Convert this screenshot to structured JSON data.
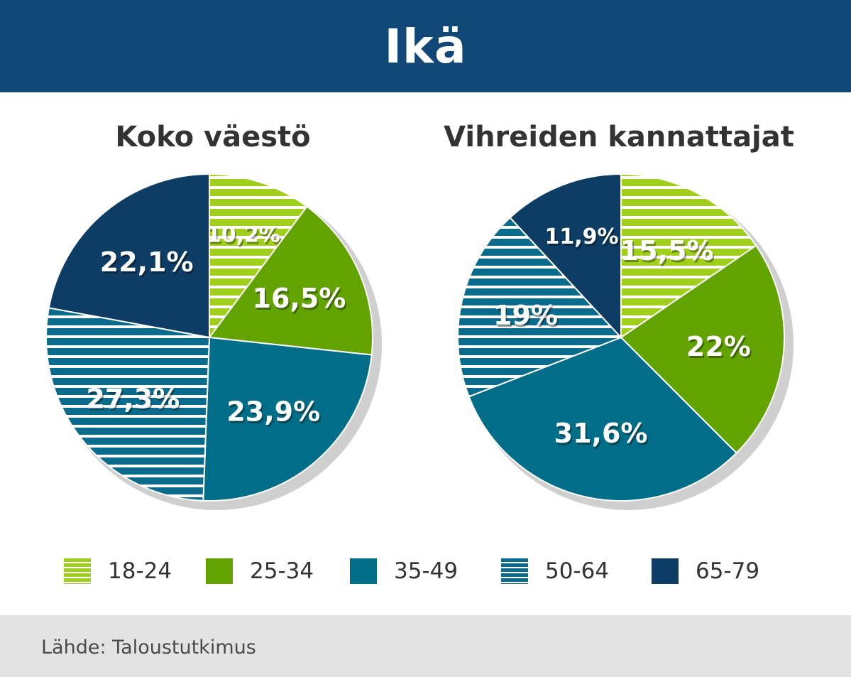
{
  "header": {
    "title": "Ikä"
  },
  "colors": {
    "header_bg": "#124878",
    "age_18_24": "#9fce1d",
    "age_25_34": "#62a300",
    "age_35_49": "#006e88",
    "age_50_64": "#0a6b8c",
    "age_65_79": "#0d3c64",
    "label_text": "#ffffff"
  },
  "legend": [
    {
      "key": "18-24",
      "label": "18-24",
      "pattern": "striped",
      "color": "#9fce1d"
    },
    {
      "key": "25-34",
      "label": "25-34",
      "pattern": "solid",
      "color": "#62a300"
    },
    {
      "key": "35-49",
      "label": "35-49",
      "pattern": "solid",
      "color": "#006e88"
    },
    {
      "key": "50-64",
      "label": "50-64",
      "pattern": "striped",
      "color": "#0a6b8c"
    },
    {
      "key": "65-79",
      "label": "65-79",
      "pattern": "solid",
      "color": "#0d3c64"
    }
  ],
  "chart_data": [
    {
      "type": "pie",
      "title": "Koko väestö",
      "categories": [
        "18-24",
        "25-34",
        "35-49",
        "50-64",
        "65-79"
      ],
      "values": [
        10.2,
        16.5,
        23.9,
        27.3,
        22.1
      ],
      "labels": [
        "10,2%",
        "16,5%",
        "23,9%",
        "27,3%",
        "22,1%"
      ]
    },
    {
      "type": "pie",
      "title": "Vihreiden kannattajat",
      "categories": [
        "18-24",
        "25-34",
        "35-49",
        "50-64",
        "65-79"
      ],
      "values": [
        15.5,
        22,
        31.6,
        19,
        11.9
      ],
      "labels": [
        "15,5%",
        "22%",
        "31,6%",
        "19%",
        "11,9%"
      ]
    }
  ],
  "footer": {
    "source": "Lähde: Taloustutkimus"
  }
}
